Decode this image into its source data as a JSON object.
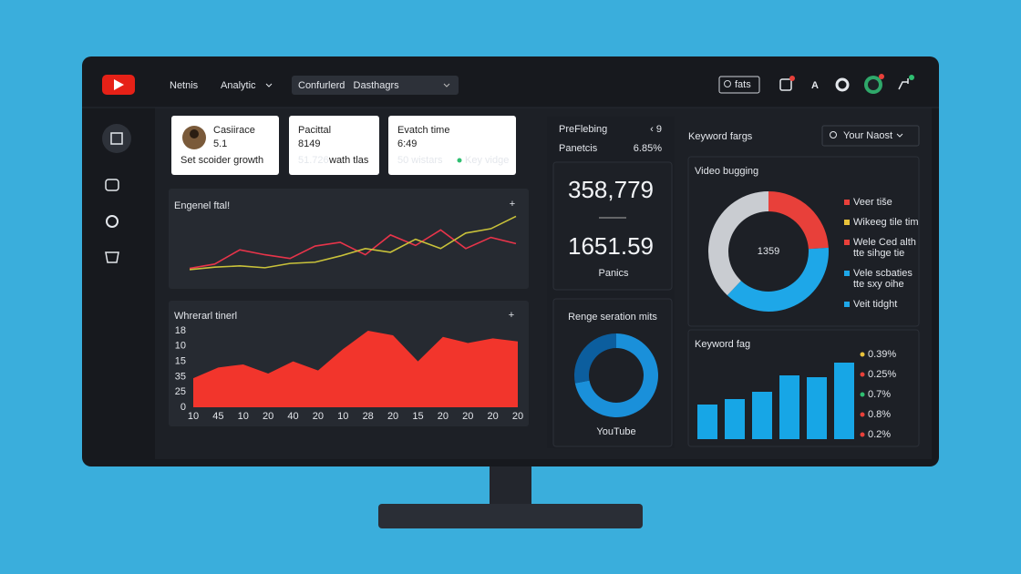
{
  "header": {
    "nav": [
      "Netnis",
      "Analytic"
    ],
    "dropdown": "Confurlerd   Dasthagrs",
    "search": "fats",
    "icon_letter": "A"
  },
  "stat_cards": [
    {
      "title": "Casiirace",
      "value": "5.1",
      "note": "Set scoider growth"
    },
    {
      "title": "Pacittal",
      "value": "8149",
      "note_highlight": "51.726",
      "note": "wath tlas"
    },
    {
      "title": "Evatch time",
      "value": "6:49",
      "note_highlight": "50 wistars",
      "tag": "Key vidge"
    }
  ],
  "side_stats": {
    "rows": [
      [
        "PreFlebing",
        "‹ 9"
      ],
      [
        "Panetcis",
        "6.85%"
      ]
    ],
    "big1": "358,779",
    "big2": "1651.59",
    "big2_label": "Panics"
  },
  "keyword_panel": {
    "title": "Keyword fargs",
    "dropdown": "Your Naost"
  },
  "chart_data": [
    {
      "type": "line",
      "title": "Engenel ftal!",
      "ylim": [
        0,
        100
      ],
      "series": [
        {
          "color": "#e8344a",
          "values": [
            8,
            15,
            38,
            30,
            24,
            44,
            50,
            30,
            62,
            45,
            70,
            40,
            58,
            48
          ]
        },
        {
          "color": "#c9c23a",
          "values": [
            6,
            10,
            12,
            9,
            16,
            18,
            28,
            40,
            34,
            55,
            40,
            65,
            72,
            92
          ]
        }
      ]
    },
    {
      "type": "area",
      "title": "Whrerarl tinerl",
      "color": "#f2352c",
      "categories": [
        "10",
        "45",
        "10",
        "20",
        "40",
        "20",
        "10",
        "28",
        "20",
        "15",
        "20",
        "20",
        "20",
        "20"
      ],
      "values": [
        19,
        26,
        28,
        22,
        30,
        24,
        38,
        50,
        47,
        30,
        46,
        42,
        45,
        43
      ],
      "ylim": [
        0,
        50
      ],
      "yticks": [
        0,
        {
          "value": 10,
          "label": "25"
        },
        {
          "value": 20,
          "label": "35"
        },
        {
          "value": 30,
          "label": "15"
        },
        {
          "value": 40,
          "label": "10"
        },
        {
          "value": 50,
          "label": "18"
        }
      ]
    },
    {
      "type": "donut",
      "title": "Video bugging",
      "center_label": "1359",
      "values": [
        24,
        38,
        38
      ],
      "colors": [
        "#e8403a",
        "#1ea7e8",
        "#c9ccd1"
      ],
      "legend": [
        {
          "name": "Veer tiše",
          "color": "#e8403a"
        },
        {
          "name": "Wikeeg tile tim",
          "color": "#e8c23a"
        },
        {
          "name": "Wele Ced alth",
          "color": "#e8403a"
        },
        {
          "name": "tte sihge tie"
        },
        {
          "name": "Vele scbaties",
          "color": "#1ea7e8"
        },
        {
          "name": "tte sxy oihe"
        },
        {
          "name": "Veit tidght",
          "color": "#1ea7e8"
        }
      ]
    },
    {
      "type": "donut",
      "title": "Renge seration mits",
      "label": "YouTube",
      "values": [
        72,
        28
      ],
      "colors": [
        "#1a90da",
        "#0c5e9e"
      ]
    },
    {
      "type": "bar",
      "title": "Keyword fag",
      "color": "#17a6e6",
      "ylim": [
        0,
        100
      ],
      "values": [
        38,
        44,
        52,
        70,
        68,
        84
      ],
      "legend": [
        {
          "name": "0.39%",
          "color": "#e8c23a"
        },
        {
          "name": "0.25%",
          "color": "#e8403a"
        },
        {
          "name": "0.7%",
          "color": "#2fbf71"
        },
        {
          "name": "0.8%",
          "color": "#e8403a"
        },
        {
          "name": "0.2%",
          "color": "#e8403a"
        }
      ]
    }
  ]
}
